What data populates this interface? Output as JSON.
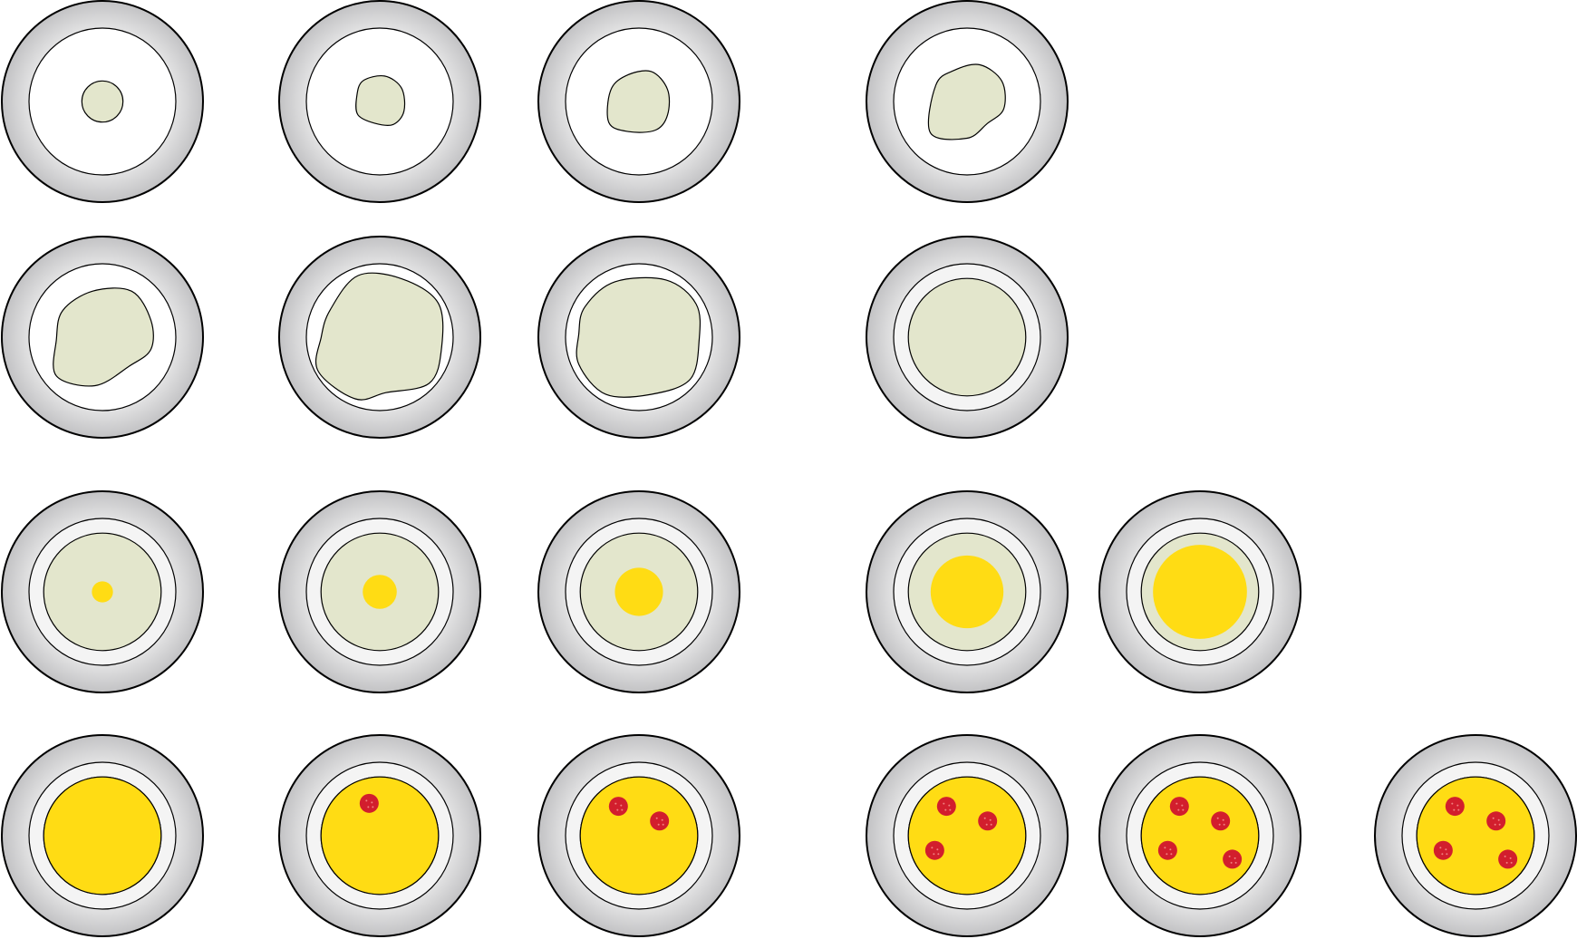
{
  "colors": {
    "background": "#ffffff",
    "plate_outer": "#c8c8ca",
    "plate_inner": "#ffffff",
    "rim": "#f4f4f4",
    "outline": "#000000",
    "dough": "#e3e6cc",
    "cheese": "#ffdc14",
    "pepperoni": "#d21e2d",
    "pepperoni_speck": "#f08080"
  },
  "plates": [
    {
      "id": "r1c1",
      "stage": "dough-ball",
      "dough_fill": 0.28,
      "dough_shape": "round",
      "cheese_fill": 0,
      "pepperoni_count": 0
    },
    {
      "id": "r1c2",
      "stage": "dough-ball",
      "dough_fill": 0.33,
      "dough_shape": "irregular",
      "cheese_fill": 0,
      "pepperoni_count": 0
    },
    {
      "id": "r1c3",
      "stage": "dough-ball",
      "dough_fill": 0.41,
      "dough_shape": "irregular",
      "cheese_fill": 0,
      "pepperoni_count": 0
    },
    {
      "id": "r1c4",
      "stage": "dough-ball",
      "dough_fill": 0.5,
      "dough_shape": "irregular",
      "cheese_fill": 0,
      "pepperoni_count": 0
    },
    {
      "id": "r2c1",
      "stage": "dough-stretch",
      "dough_fill": 0.66,
      "dough_shape": "irregular",
      "cheese_fill": 0,
      "pepperoni_count": 0
    },
    {
      "id": "r2c2",
      "stage": "dough-stretch",
      "dough_fill": 0.84,
      "dough_shape": "irregular",
      "cheese_fill": 0,
      "pepperoni_count": 0
    },
    {
      "id": "r2c3",
      "stage": "dough-stretch",
      "dough_fill": 0.82,
      "dough_shape": "irregular",
      "cheese_fill": 0,
      "pepperoni_count": 0
    },
    {
      "id": "r2c4",
      "stage": "dough-stretch",
      "dough_fill": 0.8,
      "dough_shape": "round",
      "cheese_fill": 0,
      "pepperoni_count": 0
    },
    {
      "id": "r3c1",
      "stage": "cheese",
      "dough_fill": 0.8,
      "dough_shape": "round",
      "cheese_fill": 0.18,
      "pepperoni_count": 0
    },
    {
      "id": "r3c2",
      "stage": "cheese",
      "dough_fill": 0.8,
      "dough_shape": "round",
      "cheese_fill": 0.29,
      "pepperoni_count": 0
    },
    {
      "id": "r3c3",
      "stage": "cheese",
      "dough_fill": 0.8,
      "dough_shape": "round",
      "cheese_fill": 0.41,
      "pepperoni_count": 0
    },
    {
      "id": "r3c4",
      "stage": "cheese",
      "dough_fill": 0.8,
      "dough_shape": "round",
      "cheese_fill": 0.62,
      "pepperoni_count": 0
    },
    {
      "id": "r3c5",
      "stage": "cheese",
      "dough_fill": 0.8,
      "dough_shape": "round",
      "cheese_fill": 0.8,
      "pepperoni_count": 0
    },
    {
      "id": "r4c1",
      "stage": "pepperoni",
      "dough_fill": 0.8,
      "dough_shape": "round",
      "cheese_fill": 1.0,
      "pepperoni_count": 0
    },
    {
      "id": "r4c2",
      "stage": "pepperoni",
      "dough_fill": 0.8,
      "dough_shape": "round",
      "cheese_fill": 1.0,
      "pepperoni_count": 1
    },
    {
      "id": "r4c3",
      "stage": "pepperoni",
      "dough_fill": 0.8,
      "dough_shape": "round",
      "cheese_fill": 1.0,
      "pepperoni_count": 2
    },
    {
      "id": "r4c4",
      "stage": "pepperoni",
      "dough_fill": 0.8,
      "dough_shape": "round",
      "cheese_fill": 1.0,
      "pepperoni_count": 3
    },
    {
      "id": "r4c5",
      "stage": "pepperoni",
      "dough_fill": 0.8,
      "dough_shape": "round",
      "cheese_fill": 1.0,
      "pepperoni_count": 4
    },
    {
      "id": "r4c6",
      "stage": "pepperoni",
      "dough_fill": 0.8,
      "dough_shape": "round",
      "cheese_fill": 1.0,
      "pepperoni_count": 4
    }
  ]
}
